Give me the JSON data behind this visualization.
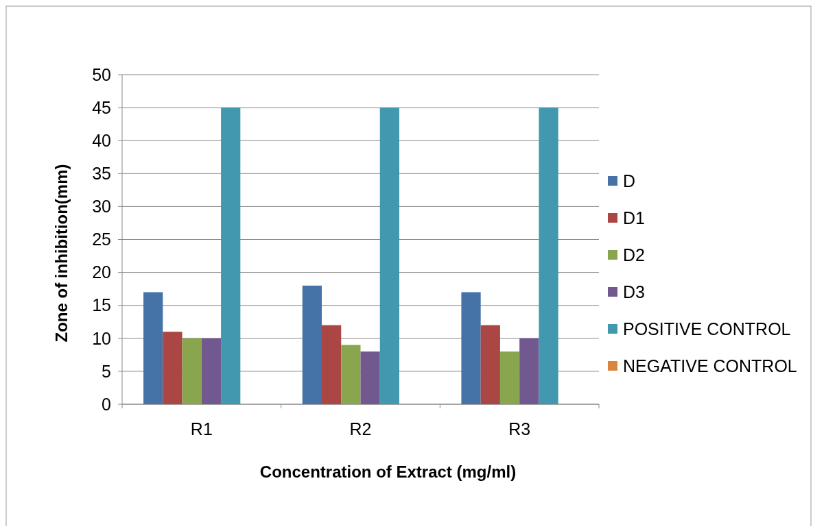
{
  "chart_data": {
    "type": "bar",
    "xlabel": "Concentration of Extract (mg/ml)",
    "ylabel": "Zone of inhibition(mm)",
    "categories": [
      "R1",
      "R2",
      "R3"
    ],
    "series": [
      {
        "name": "D",
        "color": "#4572a7",
        "values": [
          17,
          18,
          17
        ]
      },
      {
        "name": "D1",
        "color": "#aa4643",
        "values": [
          11,
          12,
          12
        ]
      },
      {
        "name": "D2",
        "color": "#89a54e",
        "values": [
          10,
          9,
          8
        ]
      },
      {
        "name": "D3",
        "color": "#71588f",
        "values": [
          10,
          8,
          10
        ]
      },
      {
        "name": "POSITIVE CONTROL",
        "color": "#4198af",
        "values": [
          45,
          45,
          45
        ]
      },
      {
        "name": "NEGATIVE CONTROL",
        "color": "#db843d",
        "values": [
          0,
          0,
          0
        ]
      }
    ],
    "ylim": [
      0,
      50
    ],
    "yticks": [
      0,
      5,
      10,
      15,
      20,
      25,
      30,
      35,
      40,
      45,
      50
    ],
    "grid": "y",
    "legend": "right"
  }
}
